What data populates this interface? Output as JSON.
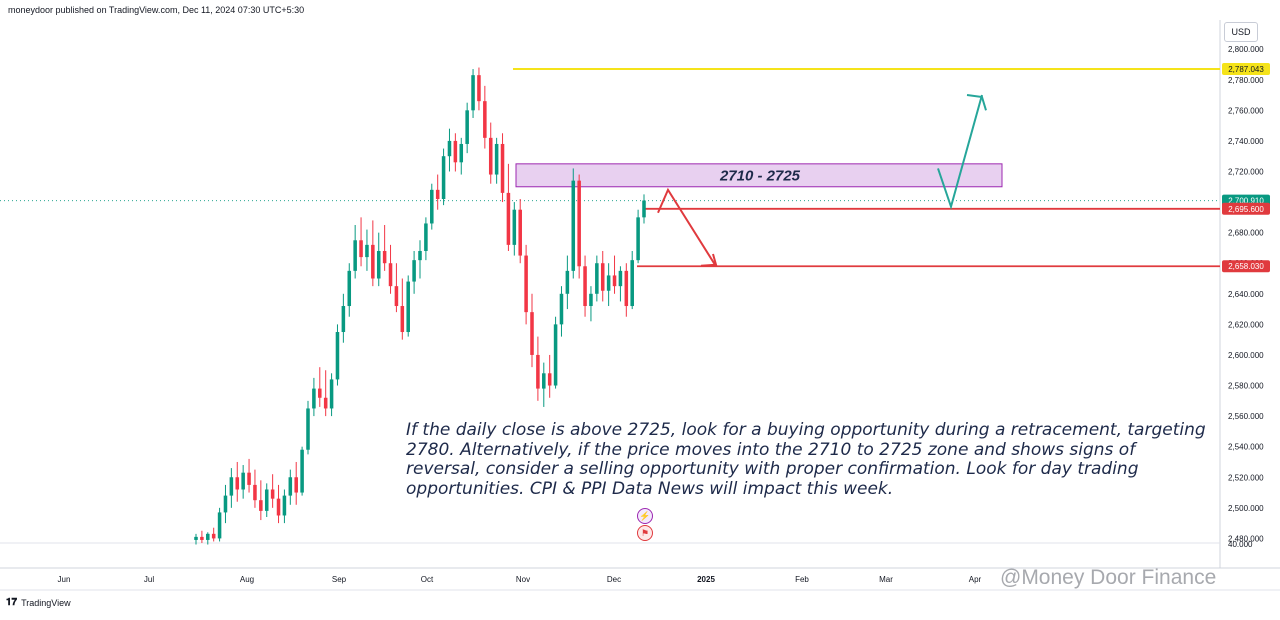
{
  "header": {
    "published_by": "moneydoor published on TradingView.com, Dec 11, 2024 07:30 UTC+5:30"
  },
  "currency": "USD",
  "annotation": "If the daily close is above 2725, look for a buying opportunity during a retracement, targeting 2780. Alternatively, if the price moves into the 2710 to 2725 zone and shows signs of reversal, consider a selling opportunity with proper confirmation. Look for day trading opportunities. CPI & PPI Data News will impact this week.",
  "zone_label": "2710 - 2725",
  "footer": {
    "brand": "TradingView"
  },
  "watermark": "@Money Door Finance",
  "colors": {
    "up": "#089981",
    "down": "#f23645",
    "resistance": "#f5e31a",
    "level": "#e03a3e",
    "zone_fill": "#e8d0f0",
    "zone_border": "#9c27b0",
    "arrow_up": "#26a69a",
    "arrow_down": "#e03a3e"
  },
  "chart_data": {
    "type": "candlestick",
    "y_ticks": [
      "2,800.000",
      "2,780.000",
      "2,760.000",
      "2,740.000",
      "2,720.000",
      "2,700.000",
      "2,680.000",
      "2,660.000",
      "2,640.000",
      "2,620.000",
      "2,600.000",
      "2,580.000",
      "2,560.000",
      "2,540.000",
      "2,520.000",
      "2,500.000",
      "2,480.000"
    ],
    "y_range": [
      2477,
      2806
    ],
    "volume_tick": "40.000",
    "x_ticks": [
      "Jun",
      "Jul",
      "Aug",
      "Sep",
      "Oct",
      "Nov",
      "Dec",
      "2025",
      "Feb",
      "Mar",
      "Apr"
    ],
    "price_labels": [
      {
        "text": "2,787.043",
        "value": 2787.043,
        "kind": "resistance"
      },
      {
        "text": "2,700.910",
        "value": 2700.91,
        "kind": "current"
      },
      {
        "text": "2,695.600",
        "value": 2695.6,
        "kind": "level"
      },
      {
        "text": "2,658.030",
        "value": 2658.03,
        "kind": "level"
      }
    ],
    "zone": {
      "low": 2710,
      "high": 2725
    },
    "candles": [
      [
        2479,
        2483,
        2476,
        2481
      ],
      [
        2481,
        2485,
        2477,
        2479
      ],
      [
        2479,
        2484,
        2476,
        2483
      ],
      [
        2483,
        2487,
        2478,
        2480
      ],
      [
        2480,
        2500,
        2478,
        2497
      ],
      [
        2497,
        2515,
        2490,
        2508
      ],
      [
        2508,
        2526,
        2500,
        2520
      ],
      [
        2520,
        2530,
        2504,
        2512
      ],
      [
        2512,
        2528,
        2506,
        2523
      ],
      [
        2523,
        2532,
        2510,
        2515
      ],
      [
        2515,
        2525,
        2500,
        2505
      ],
      [
        2505,
        2518,
        2492,
        2498
      ],
      [
        2498,
        2516,
        2494,
        2512
      ],
      [
        2512,
        2522,
        2500,
        2506
      ],
      [
        2506,
        2515,
        2490,
        2495
      ],
      [
        2495,
        2512,
        2490,
        2508
      ],
      [
        2508,
        2525,
        2502,
        2520
      ],
      [
        2520,
        2530,
        2502,
        2510
      ],
      [
        2510,
        2540,
        2508,
        2538
      ],
      [
        2538,
        2570,
        2535,
        2565
      ],
      [
        2565,
        2585,
        2560,
        2578
      ],
      [
        2578,
        2592,
        2566,
        2572
      ],
      [
        2572,
        2590,
        2560,
        2565
      ],
      [
        2565,
        2588,
        2560,
        2584
      ],
      [
        2584,
        2620,
        2580,
        2615
      ],
      [
        2615,
        2640,
        2608,
        2632
      ],
      [
        2632,
        2660,
        2625,
        2655
      ],
      [
        2655,
        2685,
        2650,
        2675
      ],
      [
        2675,
        2690,
        2658,
        2664
      ],
      [
        2664,
        2682,
        2655,
        2672
      ],
      [
        2672,
        2688,
        2645,
        2650
      ],
      [
        2650,
        2680,
        2645,
        2668
      ],
      [
        2668,
        2685,
        2655,
        2660
      ],
      [
        2660,
        2672,
        2640,
        2645
      ],
      [
        2645,
        2660,
        2628,
        2632
      ],
      [
        2632,
        2650,
        2610,
        2615
      ],
      [
        2615,
        2652,
        2612,
        2648
      ],
      [
        2648,
        2668,
        2640,
        2662
      ],
      [
        2662,
        2675,
        2650,
        2668
      ],
      [
        2668,
        2690,
        2662,
        2686
      ],
      [
        2686,
        2712,
        2682,
        2708
      ],
      [
        2708,
        2718,
        2695,
        2702
      ],
      [
        2702,
        2735,
        2698,
        2730
      ],
      [
        2730,
        2748,
        2720,
        2740
      ],
      [
        2740,
        2745,
        2720,
        2726
      ],
      [
        2726,
        2742,
        2718,
        2738
      ],
      [
        2738,
        2765,
        2732,
        2760
      ],
      [
        2760,
        2787,
        2755,
        2783
      ],
      [
        2783,
        2788,
        2760,
        2766
      ],
      [
        2766,
        2776,
        2735,
        2742
      ],
      [
        2742,
        2752,
        2712,
        2718
      ],
      [
        2718,
        2742,
        2712,
        2738
      ],
      [
        2738,
        2745,
        2700,
        2706
      ],
      [
        2706,
        2725,
        2668,
        2672
      ],
      [
        2672,
        2700,
        2665,
        2695
      ],
      [
        2695,
        2702,
        2660,
        2665
      ],
      [
        2665,
        2672,
        2620,
        2628
      ],
      [
        2628,
        2640,
        2592,
        2600
      ],
      [
        2600,
        2612,
        2570,
        2578
      ],
      [
        2578,
        2595,
        2566,
        2588
      ],
      [
        2588,
        2600,
        2572,
        2580
      ],
      [
        2580,
        2625,
        2578,
        2620
      ],
      [
        2620,
        2645,
        2612,
        2640
      ],
      [
        2640,
        2665,
        2630,
        2655
      ],
      [
        2655,
        2722,
        2650,
        2714
      ],
      [
        2714,
        2718,
        2650,
        2658
      ],
      [
        2658,
        2665,
        2625,
        2632
      ],
      [
        2632,
        2645,
        2622,
        2640
      ],
      [
        2640,
        2665,
        2635,
        2660
      ],
      [
        2660,
        2668,
        2635,
        2642
      ],
      [
        2642,
        2660,
        2632,
        2652
      ],
      [
        2652,
        2665,
        2640,
        2645
      ],
      [
        2645,
        2658,
        2635,
        2655
      ],
      [
        2655,
        2660,
        2625,
        2632
      ],
      [
        2632,
        2668,
        2630,
        2662
      ],
      [
        2662,
        2695,
        2660,
        2690
      ],
      [
        2690,
        2705,
        2686,
        2701
      ]
    ]
  }
}
